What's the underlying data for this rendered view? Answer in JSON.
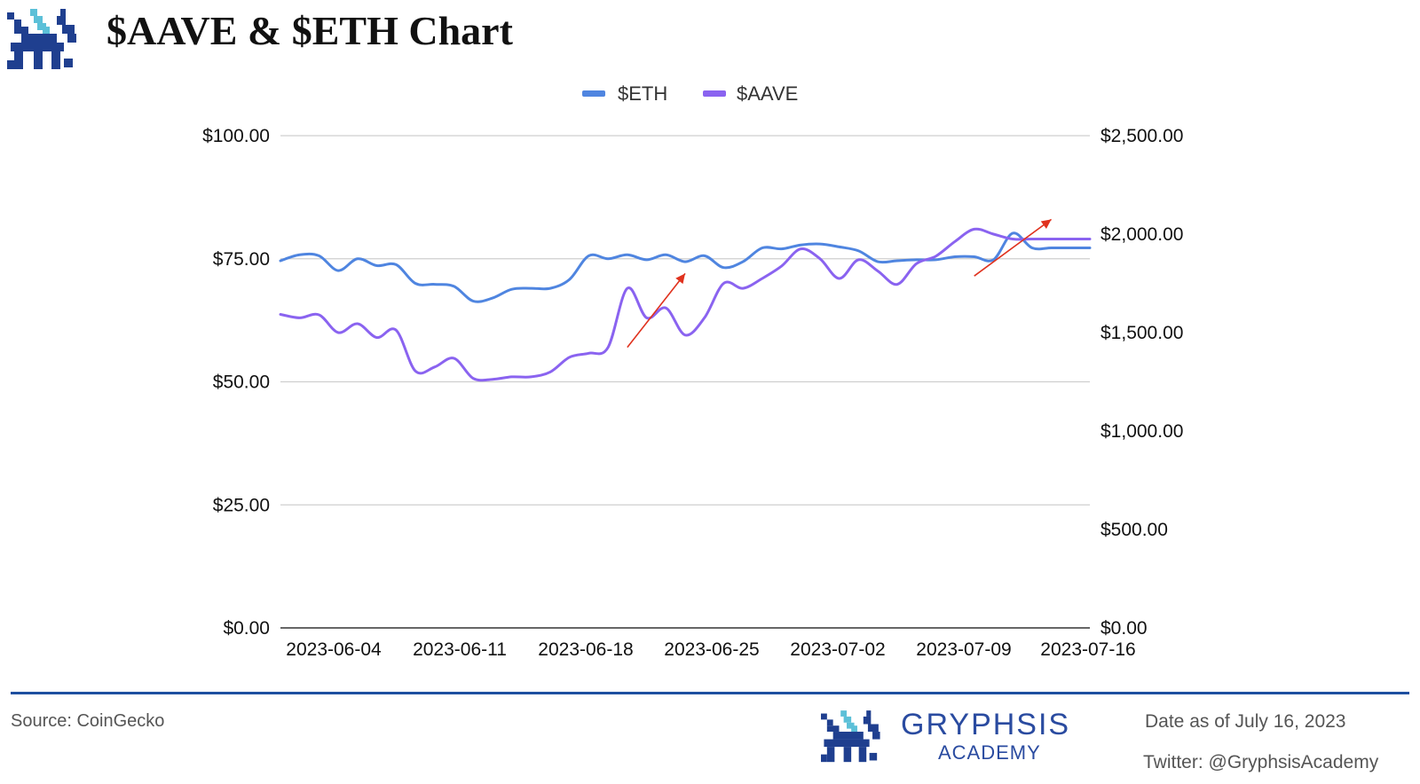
{
  "header": {
    "title": "$AAVE & $ETH Chart"
  },
  "footer": {
    "source": "Source: CoinGecko",
    "brand_name": "GRYPHSIS",
    "brand_sub": "ACADEMY",
    "date": "Date as of July 16, 2023",
    "twitter": "Twitter: @GryphsisAcademy"
  },
  "colors": {
    "eth": "#4f85e0",
    "aave": "#8a63f0",
    "annotation_arrow": "#e0321e",
    "rule": "#1d4fa0",
    "brand": "#2a4ba0"
  },
  "icons": {
    "logo": "gryphon-pixel-logo",
    "annotation": "red-arrow-icon"
  },
  "chart_data": {
    "type": "line",
    "legend_position": "top",
    "grid": true,
    "x_ticks": [
      "2023-06-04",
      "2023-06-11",
      "2023-06-18",
      "2023-06-25",
      "2023-07-02",
      "2023-07-09",
      "2023-07-16"
    ],
    "x_range": [
      "2023-06-04",
      "2023-07-16"
    ],
    "y_left": {
      "ticks": [
        "$0.00",
        "$25.00",
        "$50.00",
        "$75.00",
        "$100.00"
      ],
      "range": [
        0,
        100
      ]
    },
    "y_right": {
      "ticks": [
        "$0.00",
        "$500.00",
        "$1,000.00",
        "$1,500.00",
        "$2,000.00",
        "$2,500.00"
      ],
      "range": [
        0,
        2500
      ]
    },
    "series": [
      {
        "name": "$ETH",
        "axis": "right",
        "x": [
          "2023-06-04",
          "2023-06-05",
          "2023-06-06",
          "2023-06-07",
          "2023-06-08",
          "2023-06-09",
          "2023-06-10",
          "2023-06-11",
          "2023-06-12",
          "2023-06-13",
          "2023-06-14",
          "2023-06-15",
          "2023-06-16",
          "2023-06-17",
          "2023-06-18",
          "2023-06-19",
          "2023-06-20",
          "2023-06-21",
          "2023-06-22",
          "2023-06-23",
          "2023-06-24",
          "2023-06-25",
          "2023-06-26",
          "2023-06-27",
          "2023-06-28",
          "2023-06-29",
          "2023-06-30",
          "2023-07-01",
          "2023-07-02",
          "2023-07-03",
          "2023-07-04",
          "2023-07-05",
          "2023-07-06",
          "2023-07-07",
          "2023-07-08",
          "2023-07-09",
          "2023-07-10",
          "2023-07-11",
          "2023-07-12",
          "2023-07-13",
          "2023-07-14",
          "2023-07-15",
          "2023-07-16"
        ],
        "values": [
          1865,
          1895,
          1890,
          1815,
          1875,
          1840,
          1845,
          1750,
          1745,
          1735,
          1660,
          1675,
          1720,
          1725,
          1725,
          1770,
          1890,
          1875,
          1895,
          1870,
          1895,
          1860,
          1890,
          1830,
          1860,
          1930,
          1925,
          1945,
          1950,
          1935,
          1915,
          1860,
          1865,
          1870,
          1870,
          1885,
          1885,
          1870,
          2005,
          1930,
          1930,
          1930,
          1930
        ]
      },
      {
        "name": "$AAVE",
        "axis": "left",
        "x": [
          "2023-06-04",
          "2023-06-05",
          "2023-06-06",
          "2023-06-07",
          "2023-06-08",
          "2023-06-09",
          "2023-06-10",
          "2023-06-11",
          "2023-06-12",
          "2023-06-13",
          "2023-06-14",
          "2023-06-15",
          "2023-06-16",
          "2023-06-17",
          "2023-06-18",
          "2023-06-19",
          "2023-06-20",
          "2023-06-21",
          "2023-06-22",
          "2023-06-23",
          "2023-06-24",
          "2023-06-25",
          "2023-06-26",
          "2023-06-27",
          "2023-06-28",
          "2023-06-29",
          "2023-06-30",
          "2023-07-01",
          "2023-07-02",
          "2023-07-03",
          "2023-07-04",
          "2023-07-05",
          "2023-07-06",
          "2023-07-07",
          "2023-07-08",
          "2023-07-09",
          "2023-07-10",
          "2023-07-11",
          "2023-07-12",
          "2023-07-13",
          "2023-07-14",
          "2023-07-15",
          "2023-07-16"
        ],
        "values": [
          63.7,
          63.0,
          63.6,
          60.0,
          61.8,
          59.0,
          60.5,
          52.2,
          53.0,
          54.8,
          50.7,
          50.5,
          51.0,
          51.0,
          52.0,
          55.0,
          55.8,
          57.0,
          69.0,
          63.0,
          65.0,
          59.5,
          63.0,
          70.0,
          69.0,
          71.0,
          73.5,
          77.0,
          75.0,
          71.0,
          74.8,
          72.5,
          69.8,
          74.0,
          75.5,
          78.5,
          81.0,
          80.0,
          79.0,
          79.0,
          79.0,
          79.0,
          79.0
        ]
      }
    ],
    "annotations": [
      {
        "type": "arrow",
        "from": [
          "2023-06-22",
          57
        ],
        "to": [
          "2023-06-25",
          72
        ]
      },
      {
        "type": "arrow",
        "from": [
          "2023-07-10",
          71.5
        ],
        "to": [
          "2023-07-14",
          83
        ]
      }
    ]
  }
}
